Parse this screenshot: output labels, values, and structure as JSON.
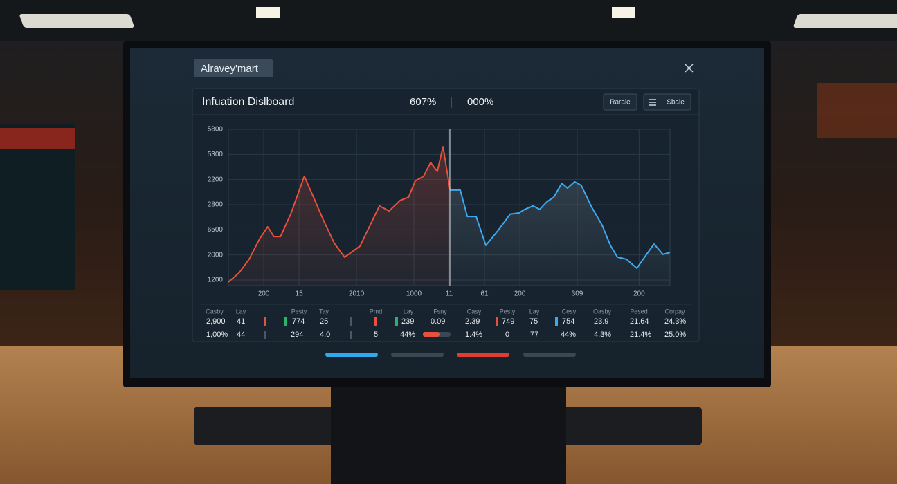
{
  "window": {
    "tab": "Alravey'mart"
  },
  "header": {
    "title": "Infuation Dislboard",
    "stat1": "607%",
    "stat2": "000%",
    "buttons": [
      "Rarale",
      "Sbale"
    ]
  },
  "chart_data": {
    "type": "line",
    "grid": true,
    "xlim": [
      0,
      100
    ],
    "ylim": [
      -0.22,
      6
    ],
    "xticks": [
      {
        "value": 8,
        "label": "200"
      },
      {
        "value": 16,
        "label": "15"
      },
      {
        "value": 29,
        "label": "2010"
      },
      {
        "value": 42,
        "label": "1000"
      },
      {
        "value": 50,
        "label": "11"
      },
      {
        "value": 58,
        "label": "61"
      },
      {
        "value": 66,
        "label": "200"
      },
      {
        "value": 79,
        "label": "309"
      },
      {
        "value": 93,
        "label": "200"
      }
    ],
    "yticks": [
      {
        "value": 6,
        "label": "5800"
      },
      {
        "value": 5,
        "label": "5300"
      },
      {
        "value": 4,
        "label": "2200"
      },
      {
        "value": 3,
        "label": "2800"
      },
      {
        "value": 2,
        "label": "6500"
      },
      {
        "value": 1,
        "label": "2000"
      },
      {
        "value": 0,
        "label": "1200"
      }
    ],
    "series": [
      {
        "color": "#e8503c",
        "x": [
          0,
          2.4,
          4.7,
          7.1,
          8.9,
          10.3,
          11.8,
          14.1,
          17.2,
          19.6,
          21.5,
          24.0,
          26.3,
          29.8,
          34.2,
          36.4,
          38.9,
          40.8,
          42.3,
          44.2,
          45.8,
          47.3,
          48.6,
          50.2
        ],
        "values": [
          -0.08,
          0.28,
          0.83,
          1.65,
          2.12,
          1.73,
          1.73,
          2.62,
          4.13,
          3.17,
          2.39,
          1.46,
          0.91,
          1.35,
          2.95,
          2.75,
          3.17,
          3.3,
          3.94,
          4.13,
          4.68,
          4.32,
          5.31,
          3.58
        ]
      },
      {
        "color": "#3fa9f0",
        "x": [
          50.2,
          52.5,
          54.1,
          56.1,
          58.3,
          61.1,
          63.8,
          65.8,
          67.1,
          69.0,
          70.5,
          72.1,
          73.7,
          75.5,
          76.8,
          78.4,
          79.9,
          82.3,
          84.6,
          86.5,
          88.1,
          90.1,
          92.5,
          94.8,
          96.4,
          98.4,
          100
        ],
        "values": [
          3.58,
          3.58,
          2.53,
          2.53,
          1.38,
          1.98,
          2.62,
          2.67,
          2.81,
          2.95,
          2.81,
          3.11,
          3.3,
          3.85,
          3.66,
          3.91,
          3.77,
          2.89,
          2.2,
          1.38,
          0.91,
          0.83,
          0.47,
          1.05,
          1.43,
          1.02,
          1.1
        ]
      }
    ]
  },
  "table": {
    "headers": [
      "Casby",
      "Lay",
      "Pesty",
      "Tay",
      "Pmd",
      "Lay",
      "Fsny",
      "Casy",
      "Pesty",
      "Lay",
      "Cesy",
      "Oasby",
      "Pesed",
      "Corpay"
    ],
    "rows": [
      [
        "2,900",
        "41",
        "774",
        "25",
        "239",
        "0.09",
        "2.39",
        "749",
        "75",
        "754",
        "23.9",
        "21.64",
        "24.3%"
      ],
      [
        "1,00%",
        "44",
        "294",
        "4.0",
        "5",
        "44%",
        "1.4%",
        "0",
        "77",
        "44%",
        "4.3%",
        "21.4%",
        "25.0%"
      ]
    ]
  }
}
